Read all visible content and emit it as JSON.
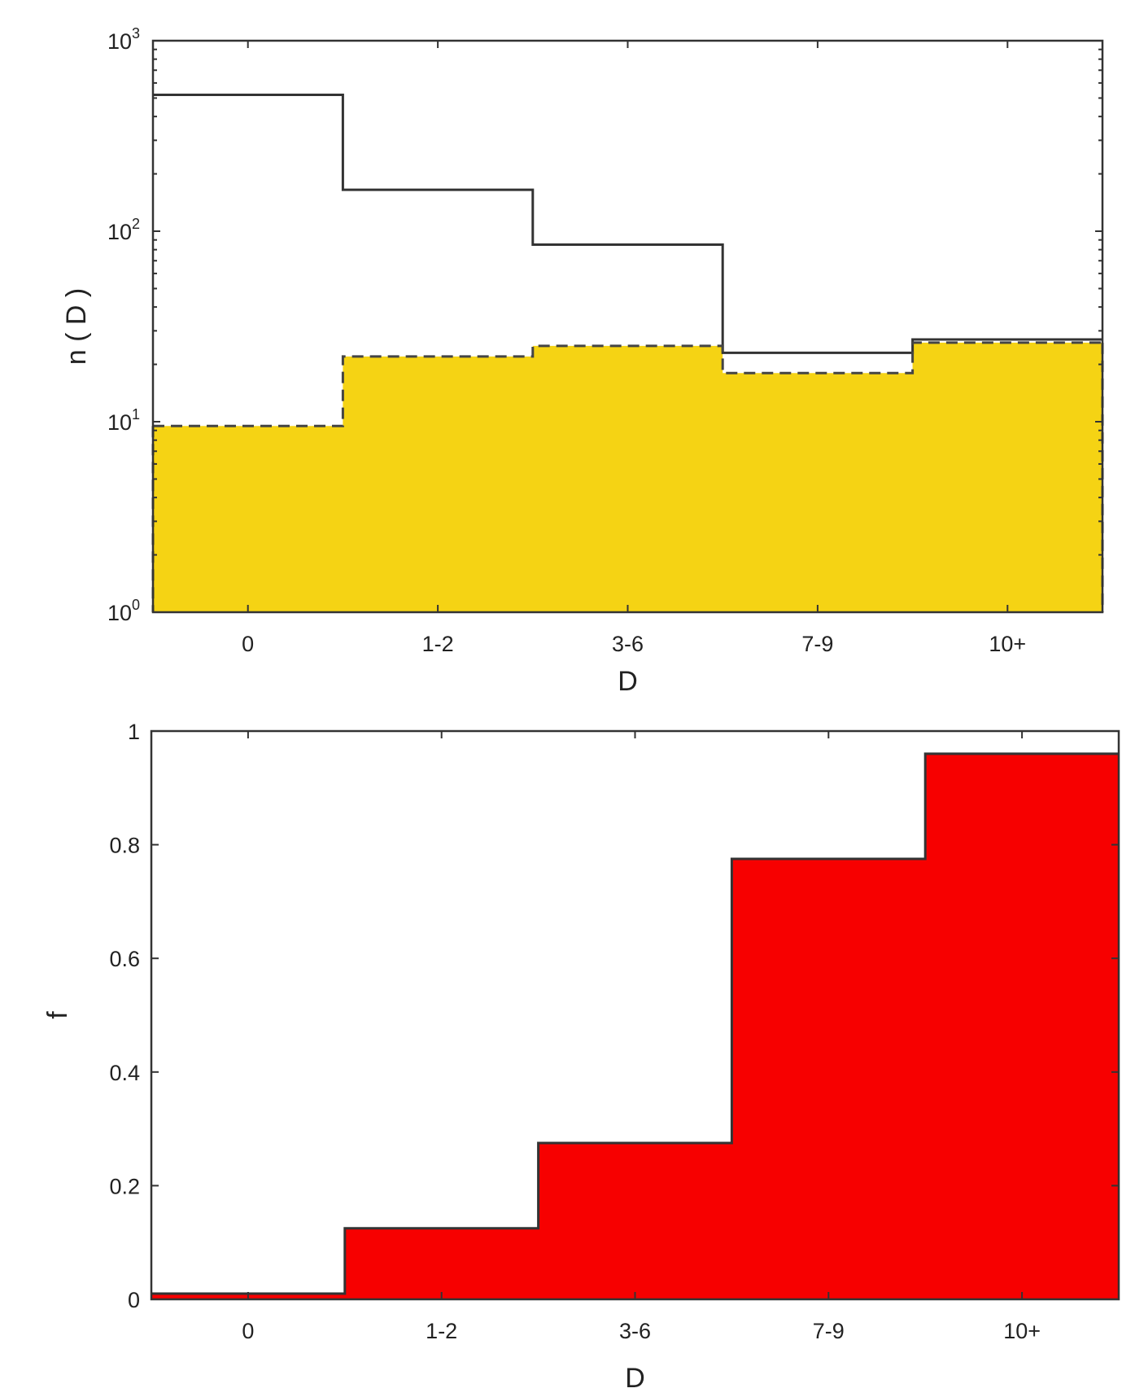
{
  "chart_data": [
    {
      "type": "bar",
      "xlabel": "D",
      "ylabel": "n ( D )",
      "yscale": "log",
      "ylim": [
        1,
        1000
      ],
      "categories": [
        "0",
        "1-2",
        "3-6",
        "7-9",
        "10+"
      ],
      "yticks": [
        {
          "value": 1,
          "base": "10",
          "exp": "0"
        },
        {
          "value": 10,
          "base": "10",
          "exp": "1"
        },
        {
          "value": 100,
          "base": "10",
          "exp": "2"
        },
        {
          "value": 1000,
          "base": "10",
          "exp": "3"
        }
      ],
      "grid": false,
      "series": [
        {
          "style": "solid-outline",
          "values": [
            520,
            165,
            85,
            23,
            27
          ]
        },
        {
          "style": "dashed-outline-filled",
          "fill": "#F5D314",
          "values": [
            9.5,
            22,
            25,
            18,
            26
          ]
        }
      ]
    },
    {
      "type": "bar",
      "xlabel": "D",
      "ylabel": "f",
      "ylim": [
        0,
        1
      ],
      "categories": [
        "0",
        "1-2",
        "3-6",
        "7-9",
        "10+"
      ],
      "yticks": [
        "0",
        "0.2",
        "0.4",
        "0.6",
        "0.8",
        "1"
      ],
      "grid": false,
      "series": [
        {
          "style": "solid-outline-filled",
          "fill": "#F70000",
          "values": [
            0.01,
            0.125,
            0.275,
            0.775,
            0.96
          ]
        }
      ]
    }
  ]
}
